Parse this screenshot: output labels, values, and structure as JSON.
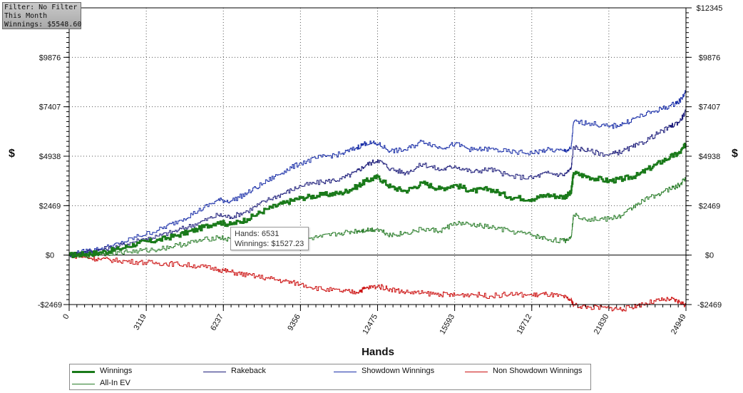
{
  "info_box": {
    "filter": "Filter: No Filter",
    "period": "This Month",
    "winnings": "Winnings: $5548.60"
  },
  "tooltip": {
    "hands": "Hands: 6531",
    "winnings": "Winnings: $1527.23"
  },
  "chart_data": {
    "type": "line",
    "xlabel": "Hands",
    "ylabel": "$",
    "xlim": [
      0,
      24949
    ],
    "ylim": [
      -2469,
      12345
    ],
    "x_ticks": [
      0,
      3119,
      6237,
      9356,
      12475,
      15593,
      18712,
      21830,
      24949
    ],
    "y_ticks": [
      {
        "value": -2469,
        "label": "-$2469"
      },
      {
        "value": 0,
        "label": "$0"
      },
      {
        "value": 2469,
        "label": "$2469"
      },
      {
        "value": 4938,
        "label": "$4938"
      },
      {
        "value": 7407,
        "label": "$7407"
      },
      {
        "value": 9876,
        "label": "$9876"
      },
      {
        "value": 12345,
        "label": "$12345"
      }
    ],
    "grid": true,
    "legend_position": "bottom",
    "series": [
      {
        "name": "Winnings",
        "color": "#1a7a1a",
        "width": 2.5,
        "x": [
          0,
          600,
          1200,
          2000,
          2800,
          3600,
          4400,
          5200,
          6000,
          6531,
          7200,
          8000,
          8700,
          9356,
          10200,
          11000,
          11600,
          12000,
          12475,
          13000,
          13600,
          14300,
          15000,
          15593,
          16300,
          17000,
          17800,
          18712,
          19300,
          20000,
          20300,
          20400,
          21000,
          21830,
          22400,
          23000,
          23700,
          24300,
          24700,
          24949
        ],
        "values": [
          0,
          50,
          120,
          300,
          600,
          750,
          1000,
          1300,
          1650,
          1527,
          1800,
          2300,
          2600,
          2850,
          3000,
          3100,
          3400,
          3700,
          3900,
          3400,
          3200,
          3600,
          3300,
          3500,
          3200,
          3300,
          2900,
          2800,
          3000,
          2900,
          3100,
          4100,
          3900,
          3700,
          3800,
          4000,
          4500,
          4900,
          5100,
          5548
        ]
      },
      {
        "name": "Rakeback",
        "color": "#1c1c7a",
        "width": 1,
        "x": [
          0,
          600,
          1200,
          2000,
          2800,
          3600,
          4400,
          5200,
          6000,
          6531,
          7200,
          8000,
          8700,
          9356,
          10200,
          11000,
          11600,
          12000,
          12475,
          13000,
          13600,
          14300,
          15000,
          15593,
          16300,
          17000,
          17800,
          18712,
          19300,
          20000,
          20300,
          20400,
          21000,
          21830,
          22400,
          23000,
          23700,
          24300,
          24700,
          24949
        ],
        "values": [
          0,
          150,
          250,
          450,
          750,
          950,
          1250,
          1600,
          2000,
          1900,
          2200,
          2750,
          3100,
          3450,
          3650,
          3800,
          4150,
          4500,
          4750,
          4300,
          4100,
          4550,
          4250,
          4450,
          4150,
          4300,
          3950,
          3850,
          4100,
          4000,
          4300,
          5400,
          5200,
          5000,
          5200,
          5500,
          6000,
          6400,
          6700,
          7200
        ]
      },
      {
        "name": "Showdown Winnings",
        "color": "#1a2fa8",
        "width": 1,
        "x": [
          0,
          600,
          1200,
          2000,
          2800,
          3600,
          4400,
          5200,
          6000,
          6531,
          7200,
          8000,
          8700,
          9356,
          10200,
          11000,
          11600,
          12000,
          12475,
          13000,
          13600,
          14300,
          15000,
          15593,
          16300,
          17000,
          17800,
          18712,
          19300,
          20000,
          20300,
          20400,
          21000,
          21830,
          22400,
          23000,
          23700,
          24300,
          24700,
          24949
        ],
        "values": [
          0,
          180,
          300,
          550,
          950,
          1250,
          1700,
          2200,
          2750,
          2700,
          3100,
          3700,
          4200,
          4600,
          4900,
          5050,
          5350,
          5600,
          5550,
          5200,
          5250,
          5700,
          5350,
          5550,
          5250,
          5300,
          5150,
          5100,
          5250,
          5200,
          5300,
          6650,
          6600,
          6400,
          6550,
          6900,
          7200,
          7450,
          7700,
          8200
        ]
      },
      {
        "name": "Non Showdown Winnings",
        "color": "#cc1111",
        "width": 1,
        "x": [
          0,
          600,
          1200,
          2000,
          2800,
          3600,
          4400,
          5200,
          6000,
          6531,
          7200,
          8000,
          8700,
          9356,
          10200,
          11000,
          11600,
          12000,
          12475,
          13000,
          13600,
          14300,
          15000,
          15593,
          16300,
          17000,
          17800,
          18712,
          19300,
          20000,
          20300,
          20400,
          21000,
          21830,
          22400,
          23000,
          23700,
          24300,
          24700,
          24949
        ],
        "values": [
          0,
          -100,
          -200,
          -280,
          -350,
          -400,
          -450,
          -550,
          -700,
          -850,
          -1000,
          -1150,
          -1300,
          -1450,
          -1700,
          -1800,
          -1850,
          -1650,
          -1550,
          -1700,
          -1850,
          -1900,
          -1950,
          -2000,
          -1950,
          -2050,
          -1950,
          -2000,
          -1950,
          -2100,
          -2250,
          -2500,
          -2600,
          -2650,
          -2700,
          -2500,
          -2300,
          -2200,
          -2350,
          -2500
        ]
      },
      {
        "name": "All-In EV",
        "color": "#2a7d2a",
        "width": 1,
        "x": [
          0,
          600,
          1200,
          2000,
          2800,
          3600,
          4400,
          5200,
          6000,
          6531,
          7200,
          8000,
          8700,
          9356,
          10200,
          11000,
          11600,
          12000,
          12475,
          13000,
          13600,
          14300,
          15000,
          15593,
          16300,
          17000,
          17800,
          18712,
          19300,
          20000,
          20300,
          20400,
          21000,
          21830,
          22400,
          23000,
          23700,
          24300,
          24700,
          24949
        ],
        "values": [
          0,
          -50,
          50,
          150,
          200,
          300,
          500,
          700,
          900,
          750,
          800,
          900,
          800,
          750,
          900,
          1100,
          1200,
          1250,
          1300,
          1000,
          1100,
          1300,
          1200,
          1600,
          1500,
          1400,
          1200,
          1000,
          800,
          700,
          900,
          2000,
          1800,
          1800,
          2000,
          2600,
          3000,
          3300,
          3500,
          3900
        ]
      }
    ]
  }
}
